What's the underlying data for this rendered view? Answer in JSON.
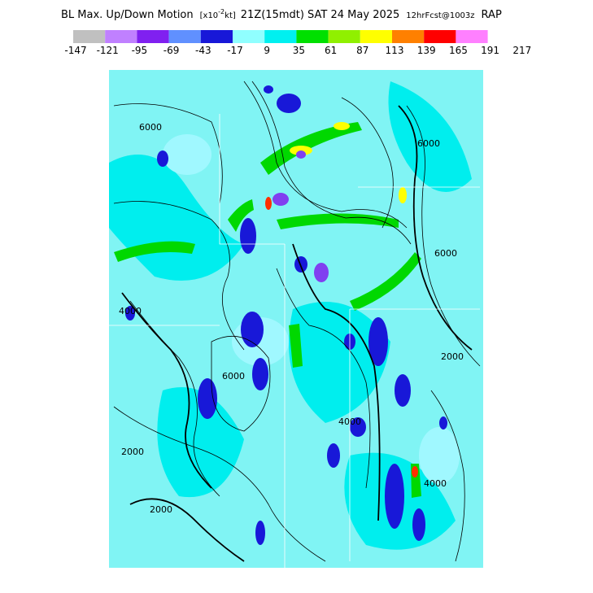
{
  "header": {
    "title": "BL Max. Up/Down Motion",
    "units_pre": "[x10",
    "units_exp": "-2",
    "units_post": "kt]",
    "valid": "21Z(15mdt) SAT 24 May 2025",
    "forecast": "12hrFcst@1003z",
    "model": "RAP"
  },
  "colorbar": {
    "colors": [
      "#c0c0c0",
      "#c080ff",
      "#8020f0",
      "#6090ff",
      "#1818d8",
      "#90ffff",
      "#00f0f0",
      "#00e000",
      "#90f000",
      "#ffff00",
      "#ff8000",
      "#ff0000",
      "#ff80ff"
    ],
    "labels": [
      -147,
      -121,
      -95,
      -69,
      -43,
      -17,
      9,
      35,
      61,
      87,
      113,
      139,
      165,
      191,
      217
    ]
  },
  "map": {
    "contour_labels": [
      "6000",
      "6000",
      "6000",
      "4000",
      "4000",
      "2000",
      "2000",
      "6000",
      "4000",
      "2000"
    ]
  }
}
